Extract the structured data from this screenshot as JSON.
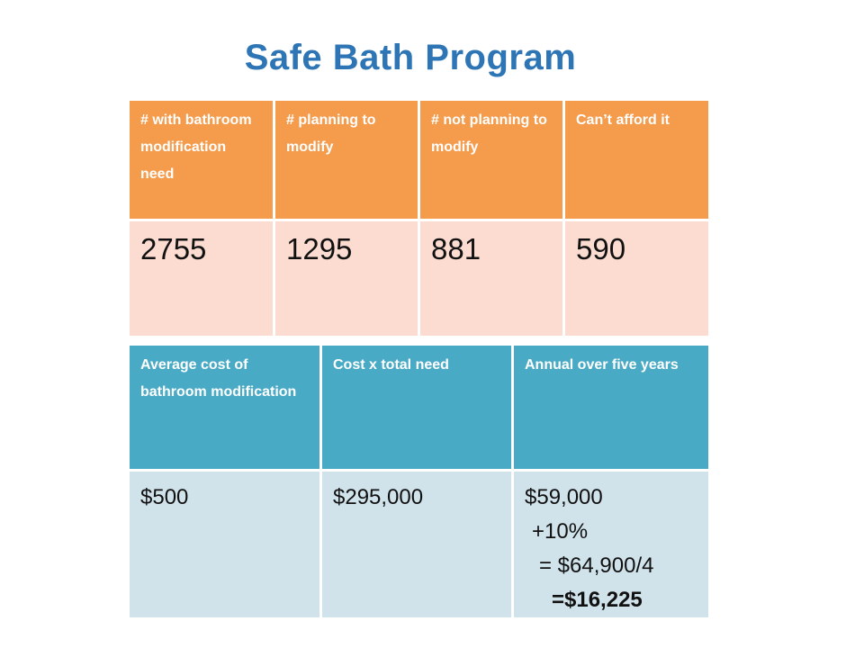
{
  "title": "Safe Bath Program",
  "table1": {
    "headers": [
      "# with bathroom modification need",
      "# planning to modify",
      "# not planning to modify",
      "Can’t afford it"
    ],
    "values": [
      "2755",
      "1295",
      "881",
      "590"
    ]
  },
  "table2": {
    "headers": [
      "Average cost of bathroom modification",
      "Cost x total need",
      "Annual over five years"
    ],
    "values": [
      "$500",
      "$295,000"
    ],
    "annual_lines": [
      "$59,000",
      "+10%",
      "= $64,900/4",
      "=$16,225"
    ]
  },
  "colors": {
    "title": "#2e75b6",
    "table1_header_bg": "#f59b4c",
    "table1_value_bg": "#fcdcd1",
    "table2_header_bg": "#49aac5",
    "table2_value_bg": "#d0e2ea"
  }
}
